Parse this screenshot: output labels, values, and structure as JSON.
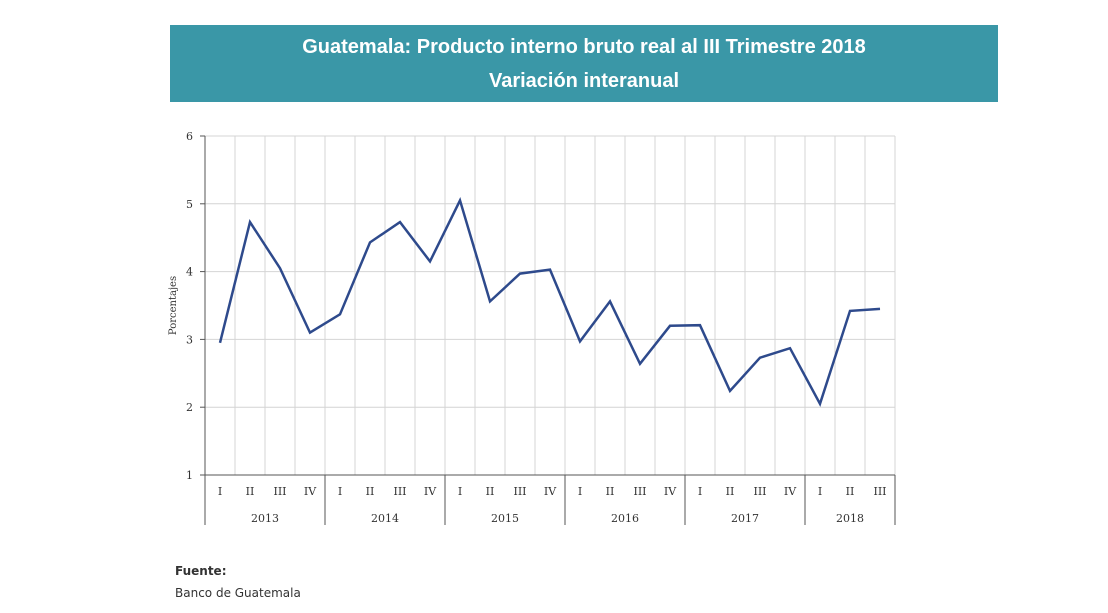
{
  "header": {
    "title": "Guatemala: Producto interno bruto real al III Trimestre 2018",
    "subtitle": "Variación interanual"
  },
  "chart_data": {
    "type": "line",
    "title": "Guatemala: Producto interno bruto real al III Trimestre 2018",
    "subtitle": "Variación interanual",
    "ylabel": "Porcentajes",
    "xlabel": "",
    "ylim": [
      1,
      6
    ],
    "yticks": [
      1,
      2,
      3,
      4,
      5,
      6
    ],
    "grid": true,
    "years": [
      {
        "label": "2013",
        "quarters": [
          "I",
          "II",
          "III",
          "IV"
        ]
      },
      {
        "label": "2014",
        "quarters": [
          "I",
          "II",
          "III",
          "IV"
        ]
      },
      {
        "label": "2015",
        "quarters": [
          "I",
          "II",
          "III",
          "IV"
        ]
      },
      {
        "label": "2016",
        "quarters": [
          "I",
          "II",
          "III",
          "IV"
        ]
      },
      {
        "label": "2017",
        "quarters": [
          "I",
          "II",
          "III",
          "IV"
        ]
      },
      {
        "label": "2018",
        "quarters": [
          "I",
          "II",
          "III"
        ]
      }
    ],
    "series": [
      {
        "color": "#2e4a8c",
        "values": [
          2.95,
          4.73,
          4.05,
          3.1,
          3.37,
          4.43,
          4.73,
          4.15,
          5.05,
          3.56,
          3.97,
          4.03,
          2.97,
          3.56,
          2.64,
          3.2,
          3.21,
          2.24,
          2.73,
          2.87,
          2.05,
          3.42,
          3.45
        ]
      }
    ]
  },
  "source": {
    "label": "Fuente:",
    "text": "Banco de Guatemala"
  }
}
